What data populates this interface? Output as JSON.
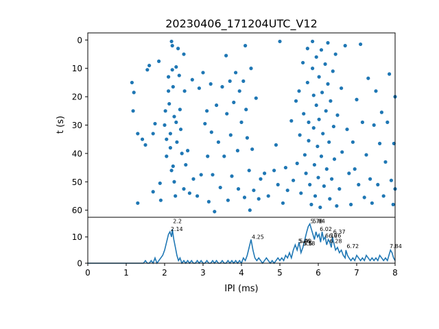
{
  "chart_data": [
    {
      "type": "scatter",
      "title": "20230406_171204UTC_V12",
      "xlabel": "",
      "ylabel": "t (s)",
      "xlim": [
        0,
        8
      ],
      "ylim": [
        62.5,
        -2.5
      ],
      "y_inverted": true,
      "yticks": [
        "0",
        "10",
        "20",
        "30",
        "40",
        "50",
        "60"
      ],
      "color": "#1f77b4",
      "series": [
        {
          "points": [
            [
              1.15,
              15
            ],
            [
              1.2,
              18.5
            ],
            [
              1.18,
              25
            ],
            [
              1.3,
              33
            ],
            [
              1.3,
              57.5
            ],
            [
              1.42,
              35
            ],
            [
              1.5,
              37
            ],
            [
              1.55,
              10.5
            ],
            [
              1.6,
              9
            ],
            [
              1.7,
              33
            ],
            [
              1.7,
              53.5
            ],
            [
              1.75,
              29.5
            ],
            [
              1.85,
              7.5
            ],
            [
              1.88,
              50.5
            ],
            [
              1.9,
              56.5
            ],
            [
              2.0,
              30
            ],
            [
              2.02,
              25
            ],
            [
              2.05,
              35
            ],
            [
              2.05,
              41
            ],
            [
              2.1,
              13
            ],
            [
              2.1,
              18
            ],
            [
              2.12,
              22.5
            ],
            [
              2.15,
              33
            ],
            [
              2.15,
              38
            ],
            [
              2.18,
              0.5
            ],
            [
              2.18,
              46
            ],
            [
              2.2,
              2
            ],
            [
              2.2,
              10.5
            ],
            [
              2.22,
              16.5
            ],
            [
              2.25,
              27
            ],
            [
              2.22,
              44.5
            ],
            [
              2.25,
              50
            ],
            [
              2.28,
              55
            ],
            [
              2.3,
              9.5
            ],
            [
              2.3,
              29
            ],
            [
              2.32,
              36
            ],
            [
              2.35,
              3
            ],
            [
              2.38,
              12.5
            ],
            [
              2.4,
              24.5
            ],
            [
              2.42,
              31.5
            ],
            [
              2.45,
              40
            ],
            [
              2.5,
              5
            ],
            [
              2.5,
              52.5
            ],
            [
              2.52,
              18
            ],
            [
              2.55,
              44
            ],
            [
              2.6,
              39
            ],
            [
              2.65,
              54
            ],
            [
              2.72,
              14
            ],
            [
              2.75,
              49
            ],
            [
              2.85,
              55
            ],
            [
              2.9,
              17
            ],
            [
              2.95,
              47.5
            ],
            [
              3.0,
              11.5
            ],
            [
              3.05,
              29.5
            ],
            [
              3.1,
              25
            ],
            [
              3.12,
              41
            ],
            [
              3.15,
              57
            ],
            [
              3.2,
              15.5
            ],
            [
              3.22,
              32.5
            ],
            [
              3.25,
              47.5
            ],
            [
              3.3,
              60.5
            ],
            [
              3.35,
              23
            ],
            [
              3.4,
              36
            ],
            [
              3.45,
              52
            ],
            [
              3.5,
              16.5
            ],
            [
              3.55,
              41
            ],
            [
              3.6,
              5.5
            ],
            [
              3.62,
              26
            ],
            [
              3.65,
              56.5
            ],
            [
              3.7,
              14.5
            ],
            [
              3.72,
              33.5
            ],
            [
              3.75,
              48
            ],
            [
              3.8,
              22
            ],
            [
              3.85,
              11.5
            ],
            [
              3.9,
              39
            ],
            [
              3.92,
              52.5
            ],
            [
              3.95,
              18
            ],
            [
              4.0,
              29
            ],
            [
              4.05,
              14.5
            ],
            [
              4.08,
              55.5
            ],
            [
              4.1,
              2
            ],
            [
              4.12,
              24.5
            ],
            [
              4.15,
              34.5
            ],
            [
              4.2,
              46
            ],
            [
              4.22,
              60
            ],
            [
              4.25,
              10
            ],
            [
              4.28,
              38.5
            ],
            [
              4.32,
              53
            ],
            [
              4.38,
              20.5
            ],
            [
              4.45,
              56
            ],
            [
              4.5,
              49
            ],
            [
              4.6,
              47
            ],
            [
              4.7,
              55
            ],
            [
              4.85,
              46
            ],
            [
              4.9,
              37
            ],
            [
              4.95,
              51
            ],
            [
              5.0,
              0.5
            ],
            [
              5.08,
              57.5
            ],
            [
              5.15,
              45
            ],
            [
              5.2,
              53
            ],
            [
              5.3,
              28.5
            ],
            [
              5.35,
              49.5
            ],
            [
              5.42,
              21.5
            ],
            [
              5.45,
              43.5
            ],
            [
              5.5,
              18
            ],
            [
              5.52,
              33.5
            ],
            [
              5.55,
              54
            ],
            [
              5.6,
              8
            ],
            [
              5.62,
              26
            ],
            [
              5.65,
              40.5
            ],
            [
              5.68,
              47
            ],
            [
              5.72,
              3
            ],
            [
              5.72,
              15
            ],
            [
              5.75,
              29
            ],
            [
              5.75,
              35.5
            ],
            [
              5.78,
              51
            ],
            [
              5.82,
              58
            ],
            [
              5.85,
              0.5
            ],
            [
              5.85,
              10
            ],
            [
              5.88,
              19.5
            ],
            [
              5.88,
              31
            ],
            [
              5.9,
              44
            ],
            [
              5.92,
              55
            ],
            [
              5.95,
              6
            ],
            [
              5.95,
              23
            ],
            [
              5.98,
              37.5
            ],
            [
              6.0,
              48.5
            ],
            [
              6.02,
              13
            ],
            [
              6.02,
              28
            ],
            [
              6.05,
              59
            ],
            [
              6.08,
              3.5
            ],
            [
              6.08,
              41
            ],
            [
              6.1,
              18.5
            ],
            [
              6.12,
              33
            ],
            [
              6.15,
              51.5
            ],
            [
              6.18,
              8.5
            ],
            [
              6.2,
              25
            ],
            [
              6.22,
              45.5
            ],
            [
              6.25,
              1
            ],
            [
              6.25,
              15.5
            ],
            [
              6.28,
              36
            ],
            [
              6.3,
              56
            ],
            [
              6.32,
              21.5
            ],
            [
              6.35,
              49
            ],
            [
              6.38,
              11
            ],
            [
              6.4,
              30.5
            ],
            [
              6.42,
              42
            ],
            [
              6.45,
              5
            ],
            [
              6.48,
              58.5
            ],
            [
              6.5,
              26.5
            ],
            [
              6.55,
              52.5
            ],
            [
              6.6,
              17
            ],
            [
              6.62,
              39.5
            ],
            [
              6.7,
              2
            ],
            [
              6.75,
              31.5
            ],
            [
              6.8,
              47
            ],
            [
              6.85,
              58
            ],
            [
              6.9,
              36
            ],
            [
              6.95,
              45.5
            ],
            [
              7.0,
              21
            ],
            [
              7.05,
              51
            ],
            [
              7.1,
              1.5
            ],
            [
              7.15,
              29
            ],
            [
              7.2,
              55.5
            ],
            [
              7.25,
              40.5
            ],
            [
              7.3,
              13.5
            ],
            [
              7.35,
              49
            ],
            [
              7.4,
              57.5
            ],
            [
              7.45,
              30
            ],
            [
              7.5,
              18
            ],
            [
              7.55,
              51
            ],
            [
              7.6,
              36.5
            ],
            [
              7.65,
              25.5
            ],
            [
              7.7,
              55
            ],
            [
              7.75,
              43
            ],
            [
              7.8,
              29
            ],
            [
              7.85,
              12
            ],
            [
              7.9,
              49.5
            ],
            [
              7.95,
              58
            ],
            [
              7.97,
              36.5
            ],
            [
              8.0,
              20
            ],
            [
              8.0,
              52.5
            ]
          ]
        }
      ]
    },
    {
      "type": "line",
      "xlabel": "IPI (ms)",
      "ylabel": "",
      "xlim": [
        0,
        8
      ],
      "ylim": [
        0,
        17.5
      ],
      "xticks": [
        "0",
        "1",
        "2",
        "3",
        "4",
        "5",
        "6",
        "7",
        "8"
      ],
      "yticks": [
        "0",
        "10"
      ],
      "color": "#1f77b4",
      "series": [
        {
          "x": [
            0,
            1.0,
            1.02,
            1.05,
            1.1,
            1.15,
            1.2,
            1.25,
            1.3,
            1.35,
            1.4,
            1.45,
            1.5,
            1.55,
            1.6,
            1.65,
            1.7,
            1.75,
            1.8,
            1.85,
            1.9,
            1.95,
            2.0,
            2.05,
            2.1,
            2.14,
            2.18,
            2.2,
            2.24,
            2.28,
            2.32,
            2.36,
            2.4,
            2.45,
            2.5,
            2.55,
            2.6,
            2.65,
            2.7,
            2.75,
            2.8,
            2.85,
            2.9,
            2.95,
            3.0,
            3.05,
            3.1,
            3.15,
            3.2,
            3.25,
            3.3,
            3.35,
            3.4,
            3.45,
            3.5,
            3.55,
            3.6,
            3.65,
            3.7,
            3.75,
            3.8,
            3.85,
            3.9,
            3.95,
            4.0,
            4.05,
            4.1,
            4.15,
            4.2,
            4.25,
            4.3,
            4.35,
            4.4,
            4.45,
            4.5,
            4.55,
            4.6,
            4.65,
            4.7,
            4.75,
            4.8,
            4.85,
            4.9,
            4.95,
            5.0,
            5.05,
            5.1,
            5.15,
            5.2,
            5.25,
            5.3,
            5.35,
            5.4,
            5.45,
            5.5,
            5.55,
            5.6,
            5.65,
            5.7,
            5.74,
            5.78,
            5.82,
            5.86,
            5.9,
            5.94,
            5.98,
            6.02,
            6.06,
            6.1,
            6.14,
            6.18,
            6.22,
            6.26,
            6.3,
            6.34,
            6.37,
            6.4,
            6.45,
            6.5,
            6.55,
            6.6,
            6.65,
            6.7,
            6.72,
            6.76,
            6.8,
            6.85,
            6.9,
            6.95,
            7.0,
            7.05,
            7.1,
            7.15,
            7.2,
            7.25,
            7.3,
            7.35,
            7.4,
            7.45,
            7.5,
            7.55,
            7.6,
            7.65,
            7.7,
            7.75,
            7.8,
            7.84,
            7.88,
            7.92,
            7.96,
            8.0
          ],
          "y": [
            0,
            0,
            0,
            0,
            0,
            0,
            0,
            0,
            0,
            0,
            0,
            0,
            1,
            0,
            0,
            1,
            0,
            2,
            0,
            1,
            2,
            3,
            5,
            8,
            11,
            12,
            10,
            13,
            9,
            6,
            3,
            1,
            2,
            0,
            1,
            0,
            1,
            0,
            1,
            0,
            0,
            1,
            0,
            1,
            0,
            0,
            1,
            0,
            0,
            1,
            0,
            1,
            0,
            0,
            1,
            0,
            0,
            1,
            0,
            1,
            0,
            1,
            0,
            1,
            0,
            2,
            1,
            3,
            6,
            9,
            5,
            2,
            1,
            2,
            1,
            0,
            1,
            2,
            1,
            0,
            1,
            0,
            1,
            2,
            1,
            2,
            1,
            3,
            2,
            4,
            2,
            5,
            7,
            5,
            8,
            4,
            6,
            9,
            12,
            14,
            15,
            13,
            11,
            9,
            12,
            10,
            11,
            8,
            12,
            9,
            10,
            7,
            9,
            8,
            6,
            10,
            8,
            5,
            6,
            4,
            5,
            3,
            2,
            5,
            3,
            2,
            1,
            2,
            1,
            3,
            2,
            1,
            2,
            1,
            3,
            2,
            1,
            2,
            1,
            2,
            1,
            3,
            2,
            1,
            2,
            1,
            3,
            5,
            4,
            2,
            1
          ]
        }
      ],
      "annotations": [
        {
          "label": "2.2",
          "x": 2.2,
          "y": 15
        },
        {
          "label": "2.14",
          "x": 2.14,
          "y": 12
        },
        {
          "label": "4.25",
          "x": 4.25,
          "y": 9
        },
        {
          "label": "5.46",
          "x": 5.46,
          "y": 7.5
        },
        {
          "label": "5.49",
          "x": 5.49,
          "y": 7.5
        },
        {
          "label": "5.58",
          "x": 5.58,
          "y": 6.5
        },
        {
          "label": "5.6",
          "x": 5.6,
          "y": 6.5
        },
        {
          "label": "5.78",
          "x": 5.78,
          "y": 15
        },
        {
          "label": "5.84",
          "x": 5.84,
          "y": 15
        },
        {
          "label": "6.02",
          "x": 6.02,
          "y": 12
        },
        {
          "label": "6.37",
          "x": 6.37,
          "y": 11
        },
        {
          "label": "6.16",
          "x": 6.16,
          "y": 9.5
        },
        {
          "label": "6.26",
          "x": 6.26,
          "y": 9.5
        },
        {
          "label": "6.28",
          "x": 6.28,
          "y": 7.5
        },
        {
          "label": "6.72",
          "x": 6.72,
          "y": 5.5
        },
        {
          "label": "7.84",
          "x": 7.84,
          "y": 5.5
        }
      ]
    }
  ]
}
